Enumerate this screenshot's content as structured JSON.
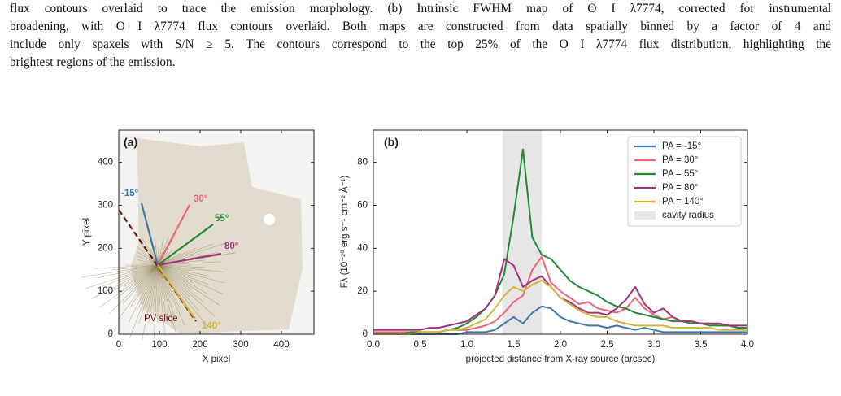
{
  "caption": [
    "flux contours overlaid to trace the emission morphology. (b) Intrinsic FWHM map of O I λ7774, corrected for instrumental",
    "broadening, with O I λ7774 flux contours overlaid. Both maps are constructed from data spatially binned by a factor of 4 and",
    "include only spaxels with S/N ≥ 5. The contours correspond to the top 25% of the O I λ7774 flux distribution, highlighting the",
    "brightest regions of the emission."
  ],
  "chart_data": [
    {
      "type": "image",
      "panel_label": "(a)",
      "xlabel": "X pixel",
      "ylabel": "Y pixel",
      "xlim": [
        0,
        480
      ],
      "ylim": [
        0,
        475
      ],
      "xticks": [
        0,
        100,
        200,
        300,
        400
      ],
      "yticks": [
        0,
        100,
        200,
        300,
        400
      ],
      "annotations": [
        "-15°",
        "30°",
        "55°",
        "80°",
        "140°",
        "PV slice"
      ]
    },
    {
      "type": "line",
      "panel_label": "(b)",
      "xlabel": "projected distance from X-ray source (arcsec)",
      "ylabel": "Fλ (10⁻²⁰ erg s⁻¹ cm⁻² Å⁻¹)",
      "xlim": [
        0,
        4
      ],
      "ylim": [
        0,
        95
      ],
      "xticks": [
        {
          "value": 0,
          "label": "0.0"
        },
        0.5,
        {
          "value": 1,
          "label": "1.0"
        },
        1.5,
        {
          "value": 2,
          "label": "2.0"
        },
        2.5,
        {
          "value": 3,
          "label": "3.0"
        },
        3.5,
        {
          "value": 4,
          "label": "4.0"
        }
      ],
      "yticks": [
        0,
        20,
        40,
        60,
        80
      ],
      "legend": "upper right",
      "band": {
        "name": "cavity radius",
        "x": [
          1.38,
          1.8
        ],
        "color": "#e6e6e6"
      },
      "x": [
        0.0,
        0.1,
        0.2,
        0.3,
        0.4,
        0.5,
        0.6,
        0.7,
        0.8,
        0.9,
        1.0,
        1.1,
        1.2,
        1.3,
        1.4,
        1.5,
        1.6,
        1.7,
        1.8,
        1.9,
        2.0,
        2.1,
        2.2,
        2.3,
        2.4,
        2.5,
        2.6,
        2.7,
        2.8,
        2.9,
        3.0,
        3.1,
        3.2,
        3.3,
        3.4,
        3.5,
        3.6,
        3.7,
        3.8,
        3.9,
        4.0
      ],
      "series": [
        {
          "name": "PA = -15°",
          "color": "#3f76ad",
          "values": [
            0,
            0,
            0,
            0,
            0,
            0,
            0,
            0,
            0,
            0,
            1,
            1,
            1,
            2,
            5,
            8,
            5,
            10,
            13,
            12,
            8,
            6,
            5,
            4,
            4,
            3,
            4,
            3,
            2,
            3,
            2,
            1,
            1,
            1,
            1,
            1,
            1,
            1,
            1,
            1,
            1
          ]
        },
        {
          "name": "PA = 30°",
          "color": "#ef6479",
          "values": [
            1,
            1,
            1,
            1,
            1,
            1,
            1,
            1,
            2,
            2,
            2,
            3,
            4,
            6,
            10,
            15,
            18,
            30,
            36,
            24,
            20,
            17,
            14,
            15,
            12,
            11,
            10,
            12,
            17,
            12,
            9,
            7,
            8,
            6,
            6,
            5,
            5,
            4,
            4,
            3,
            3
          ]
        },
        {
          "name": "PA = 55°",
          "color": "#1f8a32",
          "values": [
            0,
            0,
            0,
            0,
            1,
            1,
            1,
            1,
            2,
            3,
            5,
            8,
            12,
            18,
            28,
            55,
            86,
            45,
            37,
            35,
            30,
            25,
            22,
            20,
            18,
            15,
            13,
            12,
            10,
            9,
            8,
            7,
            6,
            6,
            5,
            5,
            4,
            4,
            4,
            3,
            3
          ]
        },
        {
          "name": "PA = 80°",
          "color": "#a3327d",
          "values": [
            2,
            2,
            2,
            2,
            2,
            2,
            3,
            3,
            4,
            5,
            6,
            9,
            12,
            18,
            35,
            32,
            22,
            25,
            27,
            22,
            17,
            15,
            12,
            10,
            10,
            9,
            12,
            16,
            22,
            14,
            10,
            12,
            8,
            6,
            6,
            5,
            5,
            5,
            4,
            4,
            4
          ]
        },
        {
          "name": "PA = 140°",
          "color": "#d2b63c",
          "values": [
            0,
            0,
            0,
            0,
            0,
            1,
            1,
            1,
            2,
            2,
            3,
            5,
            7,
            12,
            18,
            22,
            20,
            23,
            25,
            22,
            17,
            14,
            11,
            9,
            8,
            8,
            6,
            5,
            4,
            4,
            4,
            4,
            3,
            3,
            3,
            3,
            3,
            2,
            2,
            2,
            2
          ]
        }
      ]
    }
  ]
}
